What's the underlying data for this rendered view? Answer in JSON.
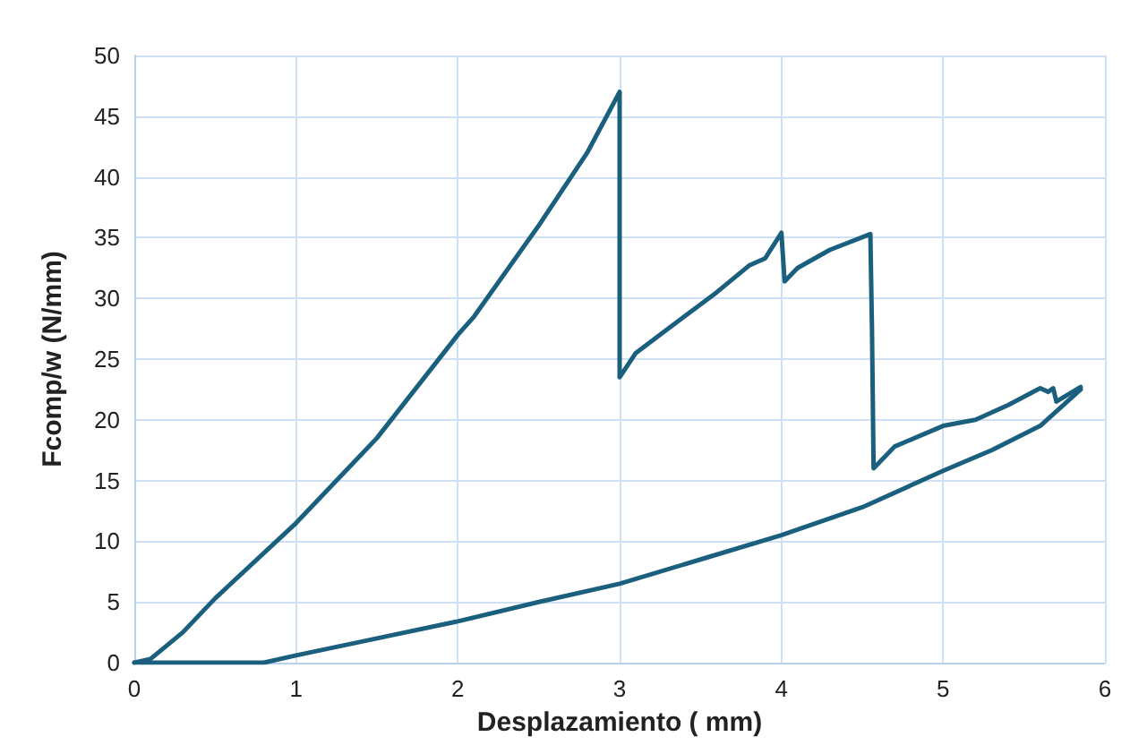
{
  "chart_data": {
    "type": "line",
    "xlabel": "Desplazamiento ( mm)",
    "ylabel": "Fcomp/w (N/mm)",
    "xlim": [
      0,
      6
    ],
    "xticks": [
      0,
      1,
      2,
      3,
      4,
      5,
      6
    ],
    "ylim": [
      0,
      50
    ],
    "yticks": [
      0,
      5,
      10,
      15,
      20,
      25,
      30,
      35,
      40,
      45,
      50
    ],
    "grid": true,
    "marker": "none",
    "line_style": "solid",
    "series": [
      {
        "color": "#1b5f7e",
        "x": [
          0,
          0.1,
          0.3,
          0.5,
          1,
          1.5,
          2,
          2.1,
          2.5,
          2.8,
          3,
          3.0,
          3.1,
          3.3,
          3.6,
          3.8,
          3.9,
          4.0,
          4.02,
          4.1,
          4.3,
          4.55,
          4.56,
          4.57,
          4.7,
          5,
          5.2,
          5.4,
          5.6,
          5.65,
          5.68,
          5.7,
          5.85
        ],
        "values": [
          0,
          0.3,
          2.5,
          5.3,
          11.5,
          18.5,
          27,
          28.5,
          36,
          42,
          47,
          23.5,
          25.5,
          27.5,
          30.5,
          32.7,
          33.3,
          35.4,
          31.4,
          32.5,
          34,
          35.3,
          27.5,
          16,
          17.8,
          19.5,
          20,
          21.2,
          22.6,
          22.3,
          22.6,
          21.5,
          22.7
        ]
      },
      {
        "color": "#1b5f7e",
        "x": [
          0,
          0.8,
          1,
          1.5,
          2,
          2.5,
          3,
          3.5,
          4,
          4.5,
          5,
          5.3,
          5.6,
          5.85
        ],
        "values": [
          0,
          0,
          0.6,
          2,
          3.4,
          5,
          6.5,
          8.5,
          10.5,
          12.8,
          15.8,
          17.5,
          19.5,
          22.5
        ]
      }
    ]
  }
}
